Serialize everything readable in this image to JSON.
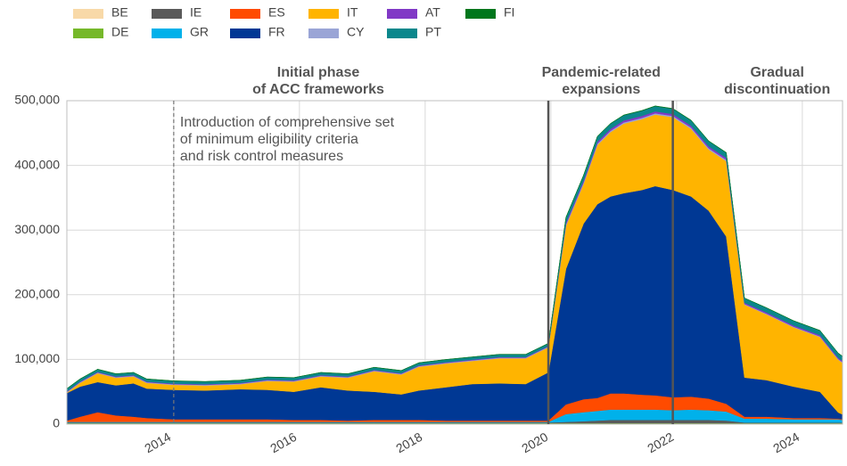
{
  "chart_data": {
    "type": "stacked_area",
    "annotations": [
      {
        "x": 2016.3,
        "lines": [
          "Initial phase",
          "of ACC frameworks"
        ]
      },
      {
        "x": 2020.8,
        "lines": [
          "Pandemic-related",
          "expansions"
        ]
      },
      {
        "x": 2023.6,
        "lines": [
          "Gradual",
          "discontinuation"
        ]
      }
    ],
    "note": {
      "x": 2014.1,
      "y": 466000,
      "lines": [
        "Introduction of comprehensive set",
        "of minimum eligibility criteria",
        "and risk control measures"
      ]
    },
    "events": [
      {
        "x": 2014.0,
        "style": "dashed"
      },
      {
        "x": 2019.96,
        "style": "solid"
      },
      {
        "x": 2021.94,
        "style": "solid"
      }
    ],
    "x": [
      2012.3,
      2012.51,
      2012.79,
      2013.08,
      2013.36,
      2013.57,
      2014.0,
      2014.5,
      2015.06,
      2015.49,
      2015.91,
      2016.34,
      2016.77,
      2017.19,
      2017.62,
      2017.9,
      2018.33,
      2018.75,
      2019.18,
      2019.6,
      2019.96,
      2020.24,
      2020.52,
      2020.74,
      2020.95,
      2021.16,
      2021.45,
      2021.66,
      2021.94,
      2022.23,
      2022.51,
      2022.79,
      2023.08,
      2023.43,
      2023.86,
      2024.28,
      2024.57,
      2024.64
    ],
    "series": [
      {
        "name": "BE",
        "color": "#f8d9a8",
        "values": [
          1000,
          1000,
          1000,
          1000,
          1000,
          1000,
          1000,
          1000,
          1000,
          1000,
          1000,
          1000,
          1000,
          1000,
          1000,
          1000,
          1000,
          1000,
          1000,
          1000,
          1000,
          1000,
          1000,
          1000,
          1000,
          1000,
          1000,
          1000,
          1000,
          1000,
          1000,
          1000,
          1000,
          1000,
          1000,
          1000,
          1000,
          1000
        ]
      },
      {
        "name": "DE",
        "color": "#76b82a",
        "values": [
          500,
          500,
          500,
          500,
          500,
          500,
          500,
          500,
          500,
          500,
          500,
          500,
          500,
          500,
          500,
          500,
          500,
          500,
          500,
          500,
          500,
          500,
          500,
          500,
          500,
          500,
          500,
          500,
          500,
          500,
          500,
          500,
          500,
          500,
          500,
          500,
          500,
          500
        ]
      },
      {
        "name": "IE",
        "color": "#5a5a5a",
        "values": [
          1000,
          1000,
          1000,
          1000,
          1000,
          1000,
          1000,
          1000,
          1000,
          1000,
          1000,
          1000,
          1000,
          1000,
          1000,
          1000,
          1000,
          1000,
          1000,
          1000,
          1000,
          2000,
          3000,
          4000,
          5000,
          5000,
          5000,
          5000,
          5000,
          5000,
          5000,
          4000,
          1000,
          1000,
          1000,
          1000,
          1000,
          1000
        ]
      },
      {
        "name": "GR",
        "color": "#00b1ea",
        "values": [
          1000,
          1000,
          1000,
          1000,
          1000,
          1000,
          1000,
          1000,
          1000,
          1000,
          1000,
          1000,
          1000,
          1000,
          1000,
          1000,
          1000,
          1000,
          1000,
          1000,
          1000,
          12000,
          14000,
          15000,
          16000,
          16000,
          16000,
          16000,
          15000,
          16000,
          15000,
          14000,
          6000,
          6000,
          5000,
          5000,
          5000,
          4000
        ]
      },
      {
        "name": "ES",
        "color": "#ff4b00",
        "values": [
          2000,
          8000,
          15000,
          10000,
          8000,
          6000,
          4000,
          4000,
          4000,
          4000,
          3000,
          3000,
          2000,
          3000,
          3000,
          3000,
          2000,
          2000,
          2000,
          2000,
          2000,
          15000,
          20000,
          20000,
          25000,
          25000,
          23000,
          22000,
          20000,
          20000,
          18000,
          12000,
          3000,
          3000,
          2000,
          2000,
          1000,
          1000
        ]
      },
      {
        "name": "FR",
        "color": "#003894",
        "values": [
          42500,
          46500,
          46500,
          46500,
          51500,
          45500,
          45500,
          44500,
          46500,
          45500,
          43500,
          50500,
          46500,
          43500,
          39500,
          45500,
          51500,
          56500,
          57500,
          56500,
          74500,
          209500,
          271500,
          299500,
          304500,
          309500,
          316500,
          323500,
          320500,
          309500,
          290500,
          258500,
          60500,
          56500,
          48500,
          40500,
          9500,
          7500
        ]
      },
      {
        "name": "IT",
        "color": "#ffb400",
        "values": [
          700,
          5700,
          13700,
          11700,
          10700,
          8700,
          7700,
          7700,
          7700,
          13700,
          15700,
          16700,
          19700,
          31700,
          30700,
          36700,
          36700,
          35700,
          38700,
          39700,
          38700,
          66500,
          61500,
          91500,
          99500,
          107500,
          109500,
          110500,
          112500,
          104500,
          94500,
          116500,
          112700,
          101700,
          91700,
          84700,
          81700,
          79700
        ]
      },
      {
        "name": "CY",
        "color": "#9aa5d6",
        "values": [
          1000,
          1000,
          1000,
          1000,
          1000,
          1000,
          1000,
          1000,
          1000,
          1000,
          1000,
          1000,
          1000,
          1000,
          1000,
          1000,
          1000,
          1000,
          1000,
          1000,
          1000,
          2000,
          2000,
          2000,
          2000,
          2000,
          2000,
          2000,
          2000,
          2000,
          2000,
          2000,
          1000,
          1000,
          1000,
          1000,
          1000,
          1000
        ]
      },
      {
        "name": "AT",
        "color": "#8139c6",
        "values": [
          1000,
          1000,
          1000,
          1000,
          1000,
          1000,
          1000,
          1000,
          1000,
          1000,
          1000,
          1000,
          1000,
          1000,
          1000,
          1000,
          1000,
          1000,
          1000,
          1000,
          1000,
          3000,
          3000,
          3000,
          3000,
          3000,
          3000,
          3000,
          3000,
          3000,
          3000,
          3000,
          2000,
          2000,
          2000,
          2000,
          2000,
          2000
        ]
      },
      {
        "name": "PT",
        "color": "#0b878c",
        "values": [
          4000,
          4000,
          4000,
          4000,
          4000,
          4000,
          4000,
          4000,
          4000,
          4000,
          4000,
          4000,
          4000,
          4000,
          4000,
          4000,
          4000,
          4000,
          4000,
          4000,
          4000,
          8000,
          8000,
          8000,
          8000,
          8000,
          8000,
          8000,
          8000,
          8000,
          8000,
          8000,
          7000,
          7000,
          7000,
          7000,
          7000,
          7000
        ]
      },
      {
        "name": "FI",
        "color": "#00761c",
        "values": [
          300,
          300,
          300,
          300,
          300,
          300,
          300,
          300,
          300,
          300,
          300,
          300,
          300,
          300,
          300,
          300,
          300,
          300,
          300,
          300,
          300,
          500,
          500,
          500,
          500,
          500,
          500,
          500,
          500,
          500,
          500,
          500,
          300,
          300,
          300,
          300,
          300,
          300
        ]
      }
    ],
    "xlim": [
      2012.3,
      2024.64
    ],
    "xticks": [
      2014,
      2016,
      2018,
      2020,
      2022,
      2024
    ],
    "ylim": [
      0,
      500000
    ],
    "yticks": [
      0,
      {
        "value": 100000,
        "label": "100,000"
      },
      {
        "value": 200000,
        "label": "200,000"
      },
      {
        "value": 300000,
        "label": "300,000"
      },
      {
        "value": 400000,
        "label": "400,000"
      },
      {
        "value": 500000,
        "label": "500,000"
      }
    ],
    "grid": true
  }
}
